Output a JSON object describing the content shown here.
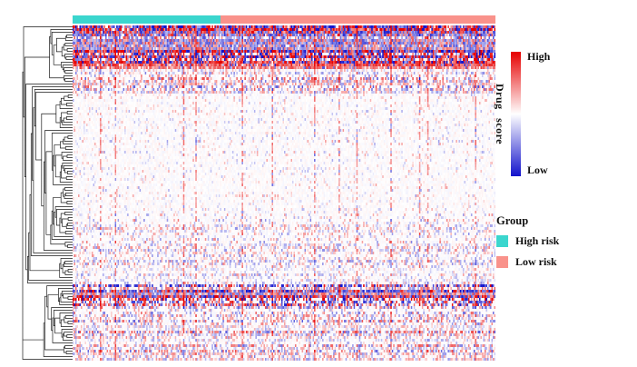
{
  "chart_data": {
    "type": "heatmap",
    "title": "",
    "rows": 123,
    "cols": 310,
    "value_range": [
      -1,
      1
    ],
    "seed": 42,
    "colormap": {
      "low": "#1212CC",
      "mid": "#FFFFFF",
      "high": "#E60000"
    },
    "colorbar": {
      "label": "Drug score",
      "high_label": "High",
      "low_label": "Low"
    },
    "col_annotation": {
      "name": "Group",
      "groups": [
        {
          "label": "High risk",
          "color": "#3BD6CE",
          "fraction": 0.35
        },
        {
          "label": "Low risk",
          "color": "#F9928B",
          "fraction": 0.65
        }
      ]
    },
    "legend": {
      "title": "Group",
      "items": [
        {
          "label": "High risk",
          "color": "#3BD6CE"
        },
        {
          "label": "Low risk",
          "color": "#F9928B"
        }
      ]
    },
    "row_dendrogram": true,
    "row_bands": [
      {
        "from": 0.0,
        "to": 0.09,
        "density": 0.92,
        "intensity": 0.95,
        "red_bias": 0.0
      },
      {
        "from": 0.09,
        "to": 0.13,
        "density": 0.85,
        "intensity": 0.9,
        "red_bias": 0.55
      },
      {
        "from": 0.13,
        "to": 0.2,
        "density": 0.5,
        "intensity": 0.6,
        "red_bias": 0.1
      },
      {
        "from": 0.2,
        "to": 0.56,
        "density": 0.1,
        "intensity": 0.32,
        "red_bias": 0.1
      },
      {
        "from": 0.56,
        "to": 0.77,
        "density": 0.3,
        "intensity": 0.42,
        "red_bias": 0.0
      },
      {
        "from": 0.77,
        "to": 0.83,
        "density": 0.92,
        "intensity": 0.95,
        "red_bias": 0.0
      },
      {
        "from": 0.83,
        "to": 1.0,
        "density": 0.45,
        "intensity": 0.55,
        "red_bias": 0.05
      }
    ],
    "hot_columns": [
      0.065,
      0.1,
      0.26,
      0.29,
      0.4,
      0.47,
      0.57,
      0.63,
      0.67,
      0.75,
      0.82,
      0.84,
      0.95
    ],
    "hot_column_boost": 0.55
  }
}
